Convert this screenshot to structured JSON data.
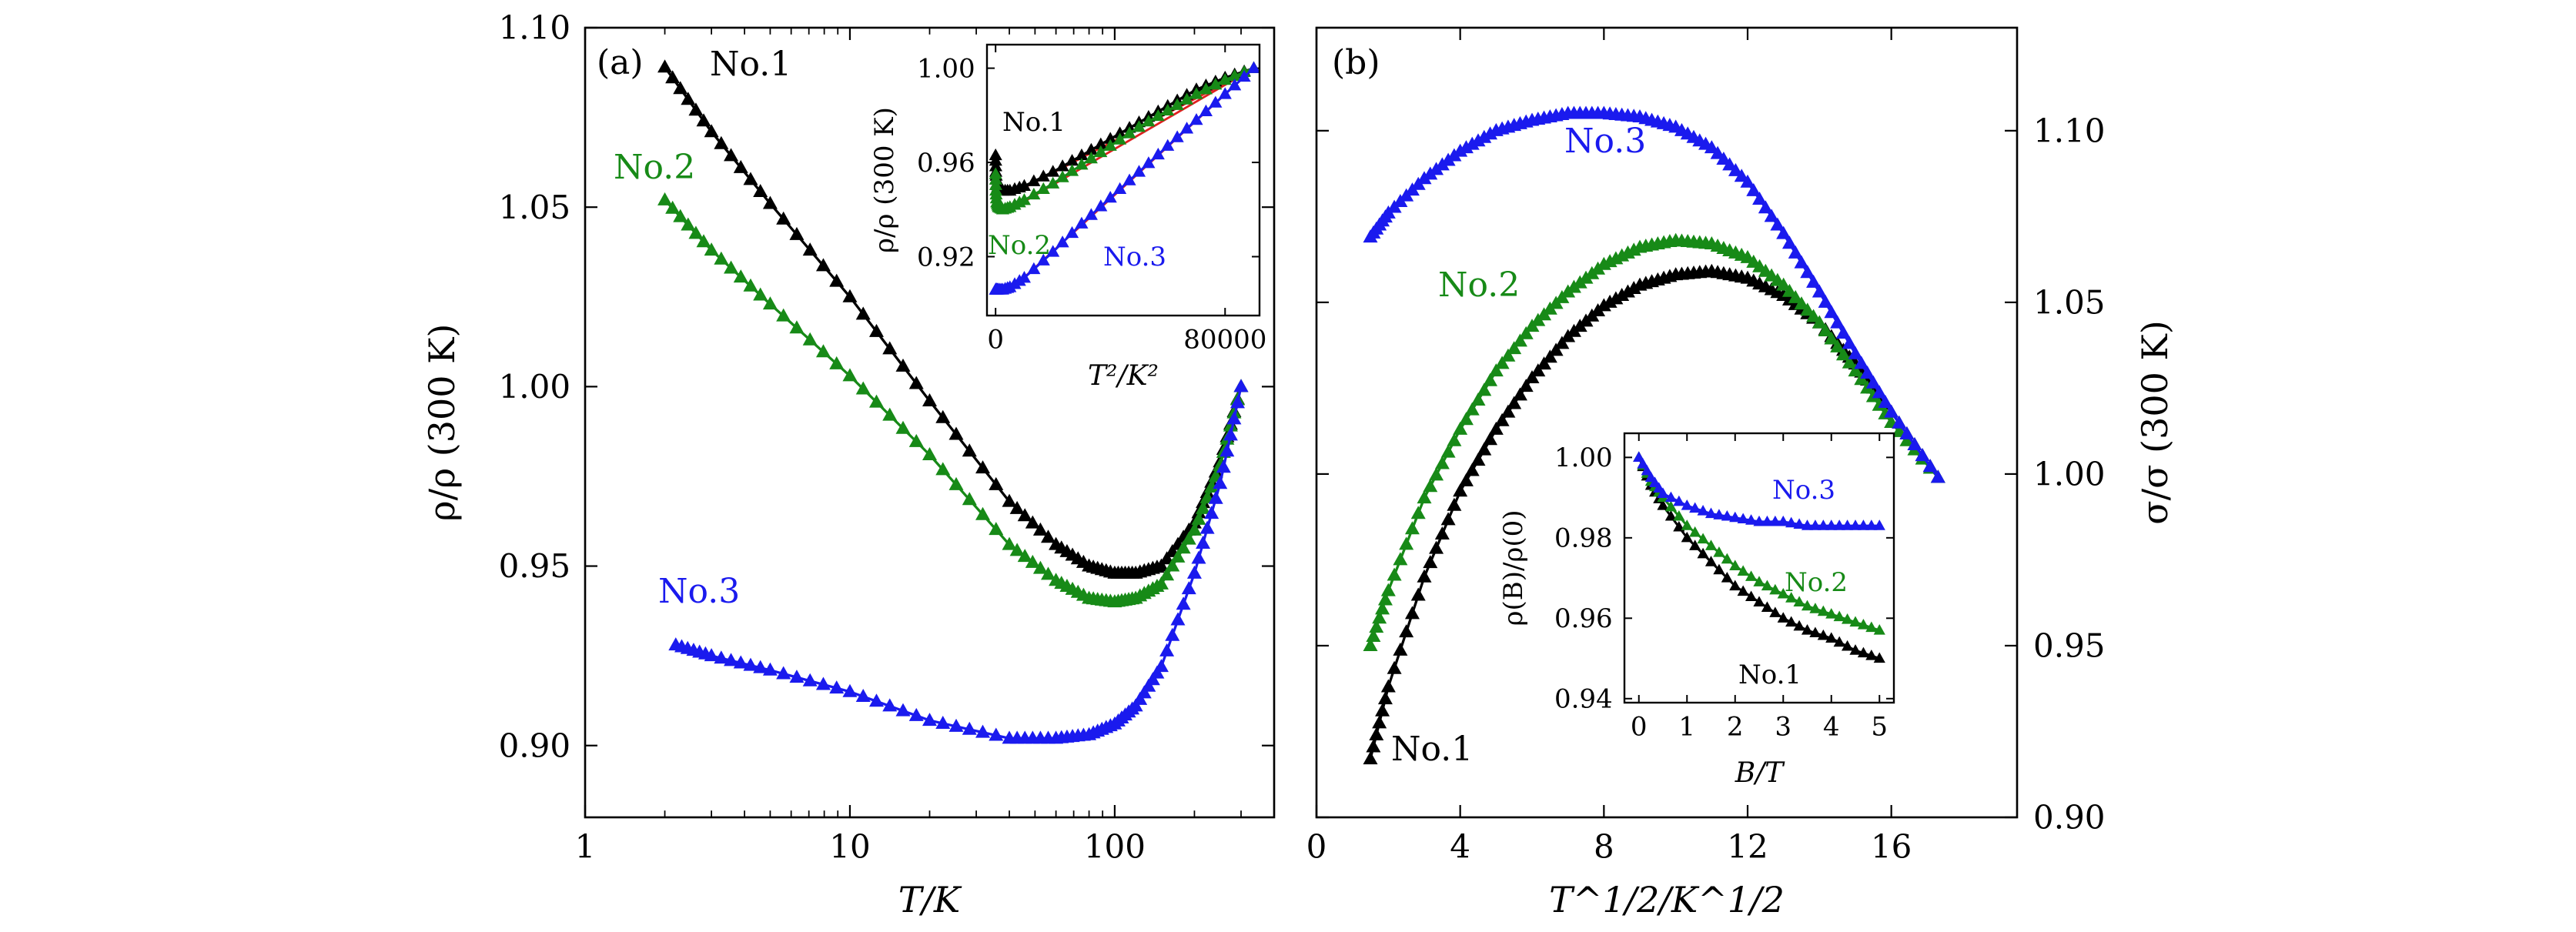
{
  "colors": {
    "No.1": "#000000",
    "No.2": "#178a17",
    "No.3": "#1a1aee",
    "fit": "#e02020"
  },
  "chart_data": [
    {
      "type": "scatter",
      "panel": "(a)",
      "panel_label": "(a)",
      "xscale": "log",
      "xlim": [
        1,
        400
      ],
      "ylim": [
        0.88,
        1.1
      ],
      "xticks": [
        1,
        10,
        100
      ],
      "xtick_labels": [
        "1",
        "10",
        "100"
      ],
      "yticks": [
        0.9,
        0.95,
        1.0,
        1.05,
        1.1
      ],
      "ytick_labels": [
        "0.90",
        "0.95",
        "1.00",
        "1.05",
        "1.10"
      ],
      "xlabel": "T/K",
      "ylabel": "ρ/ρ (300 K)",
      "series": [
        {
          "name": "No.1",
          "label": "No.1",
          "x": [
            2,
            3,
            5,
            10,
            20,
            40,
            60,
            80,
            100,
            120,
            150,
            200,
            250,
            300
          ],
          "y": [
            1.089,
            1.071,
            1.051,
            1.025,
            0.996,
            0.968,
            0.956,
            0.95,
            0.948,
            0.948,
            0.95,
            0.962,
            0.979,
            1.0
          ]
        },
        {
          "name": "No.2",
          "label": "No.2",
          "x": [
            2,
            3,
            5,
            10,
            20,
            40,
            60,
            80,
            100,
            120,
            150,
            200,
            250,
            300
          ],
          "y": [
            1.052,
            1.038,
            1.023,
            1.003,
            0.981,
            0.956,
            0.946,
            0.941,
            0.94,
            0.941,
            0.945,
            0.96,
            0.978,
            1.0
          ]
        },
        {
          "name": "No.3",
          "label": "No.3",
          "x": [
            2.2,
            3,
            5,
            10,
            20,
            40,
            60,
            80,
            100,
            120,
            150,
            200,
            250,
            300
          ],
          "y": [
            0.928,
            0.925,
            0.921,
            0.915,
            0.907,
            0.902,
            0.902,
            0.903,
            0.906,
            0.911,
            0.922,
            0.948,
            0.973,
            1.0
          ]
        }
      ]
    },
    {
      "type": "scatter",
      "panel": "(a) inset",
      "xlim": [
        -3000,
        92000
      ],
      "ylim": [
        0.895,
        1.01
      ],
      "xticks": [
        0,
        80000
      ],
      "xtick_labels": [
        "0",
        "80000"
      ],
      "yticks": [
        0.92,
        0.96,
        1.0
      ],
      "ytick_labels": [
        "0.92",
        "0.96",
        "1.00"
      ],
      "xlabel": "T²/K²",
      "ylabel": "ρ/ρ (300 K)",
      "series": [
        {
          "name": "No.1",
          "label": "No.1",
          "x": [
            4,
            100,
            400,
            1000,
            2500,
            5000,
            10000,
            20000,
            30000,
            40000,
            50000,
            60000,
            70000,
            80000,
            90000
          ],
          "y": [
            0.963,
            0.956,
            0.951,
            0.949,
            0.948,
            0.948,
            0.95,
            0.956,
            0.963,
            0.97,
            0.977,
            0.984,
            0.991,
            0.996,
            1.0
          ]
        },
        {
          "name": "No.2",
          "label": "No.2",
          "x": [
            4,
            100,
            400,
            1000,
            2500,
            5000,
            10000,
            20000,
            30000,
            40000,
            50000,
            60000,
            70000,
            80000,
            90000
          ],
          "y": [
            0.955,
            0.948,
            0.943,
            0.941,
            0.94,
            0.941,
            0.944,
            0.951,
            0.959,
            0.967,
            0.975,
            0.982,
            0.989,
            0.995,
            1.0
          ]
        },
        {
          "name": "No.3",
          "label": "No.3",
          "x": [
            5,
            100,
            400,
            1000,
            2500,
            5000,
            10000,
            20000,
            30000,
            40000,
            50000,
            60000,
            70000,
            80000,
            90000
          ],
          "y": [
            0.906,
            0.906,
            0.906,
            0.906,
            0.906,
            0.907,
            0.911,
            0.922,
            0.934,
            0.945,
            0.956,
            0.967,
            0.978,
            0.989,
            1.0
          ]
        }
      ],
      "fit_lines": [
        {
          "name": "fit-No.1",
          "x": [
            8000,
            90000
          ],
          "y": [
            0.948,
            1.0
          ]
        },
        {
          "name": "fit-No.2",
          "x": [
            8000,
            90000
          ],
          "y": [
            0.942,
            1.0
          ]
        },
        {
          "name": "fit-No.3",
          "x": [
            8000,
            90000
          ],
          "y": [
            0.909,
            1.0
          ]
        }
      ]
    },
    {
      "type": "scatter",
      "panel": "(b)",
      "panel_label": "(b)",
      "xlim": [
        0,
        19.5
      ],
      "ylim": [
        0.9,
        1.13
      ],
      "xticks": [
        0,
        4,
        8,
        12,
        16
      ],
      "xtick_labels": [
        "0",
        "4",
        "8",
        "12",
        "16"
      ],
      "yticks": [
        0.9,
        0.95,
        1.0,
        1.05,
        1.1
      ],
      "ytick_labels": [
        "0.90",
        "0.95",
        "1.00",
        "1.05",
        "1.10"
      ],
      "xlabel": "T^1/2/K^1/2",
      "ylabel": "σ/σ (300 K)",
      "yaxis_side": "right",
      "series": [
        {
          "name": "No.1",
          "label": "No.1",
          "x": [
            1.5,
            2,
            3,
            4,
            5,
            6,
            7,
            8,
            9,
            10,
            11,
            12,
            13,
            14,
            15,
            16,
            17.3
          ],
          "y": [
            0.917,
            0.938,
            0.97,
            0.995,
            1.013,
            1.028,
            1.04,
            1.049,
            1.055,
            1.058,
            1.059,
            1.057,
            1.052,
            1.044,
            1.032,
            1.018,
            0.999
          ]
        },
        {
          "name": "No.2",
          "label": "No.2",
          "x": [
            1.5,
            2,
            3,
            4,
            5,
            6,
            7,
            8,
            9,
            10,
            11,
            12,
            13,
            14,
            15,
            16,
            17.3
          ],
          "y": [
            0.95,
            0.966,
            0.993,
            1.013,
            1.03,
            1.043,
            1.053,
            1.061,
            1.066,
            1.068,
            1.067,
            1.063,
            1.055,
            1.044,
            1.03,
            1.015,
            0.999
          ]
        },
        {
          "name": "No.3",
          "label": "No.3",
          "x": [
            1.5,
            2,
            3,
            4,
            5,
            6,
            7,
            8,
            9,
            10,
            11,
            12,
            13,
            14,
            15,
            16,
            17.3
          ],
          "y": [
            1.069,
            1.076,
            1.086,
            1.094,
            1.1,
            1.103,
            1.105,
            1.105,
            1.104,
            1.101,
            1.095,
            1.085,
            1.07,
            1.053,
            1.035,
            1.018,
            0.999
          ]
        }
      ]
    },
    {
      "type": "scatter",
      "panel": "(b) inset",
      "xlim": [
        -0.3,
        5.3
      ],
      "ylim": [
        0.939,
        1.006
      ],
      "xticks": [
        0,
        1,
        2,
        3,
        4,
        5
      ],
      "xtick_labels": [
        "0",
        "1",
        "2",
        "3",
        "4",
        "5"
      ],
      "yticks": [
        0.94,
        0.96,
        0.98,
        1.0
      ],
      "ytick_labels": [
        "0.94",
        "0.96",
        "0.98",
        "1.00"
      ],
      "xlabel": "B/T",
      "ylabel": "ρ(B)/ρ(0)",
      "series": [
        {
          "name": "No.1",
          "label": "No.1",
          "x": [
            0,
            0.25,
            0.5,
            1,
            1.5,
            2,
            2.5,
            3,
            3.5,
            4,
            4.5,
            5
          ],
          "y": [
            1.0,
            0.993,
            0.988,
            0.98,
            0.974,
            0.968,
            0.964,
            0.96,
            0.957,
            0.955,
            0.952,
            0.95
          ]
        },
        {
          "name": "No.2",
          "label": "No.2",
          "x": [
            0,
            0.25,
            0.5,
            1,
            1.5,
            2,
            2.5,
            3,
            3.5,
            4,
            4.5,
            5
          ],
          "y": [
            1.0,
            0.994,
            0.99,
            0.983,
            0.978,
            0.973,
            0.969,
            0.966,
            0.963,
            0.961,
            0.959,
            0.957
          ]
        },
        {
          "name": "No.3",
          "label": "No.3",
          "x": [
            0,
            0.25,
            0.5,
            1,
            1.5,
            2,
            2.5,
            3,
            3.5,
            4,
            4.5,
            5
          ],
          "y": [
            1.0,
            0.995,
            0.991,
            0.988,
            0.986,
            0.985,
            0.984,
            0.984,
            0.983,
            0.983,
            0.983,
            0.983
          ]
        }
      ]
    }
  ]
}
